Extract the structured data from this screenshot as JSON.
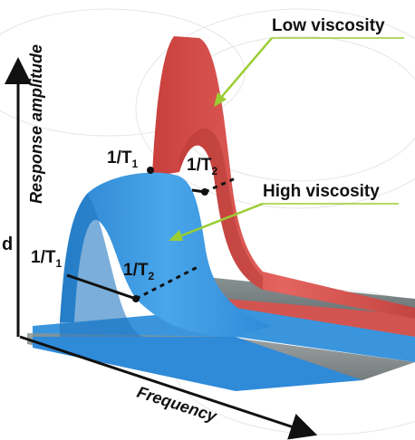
{
  "axes": {
    "y_label": "Response amplitude",
    "x_label": "Frequency"
  },
  "labels": {
    "low_viscosity": "Low viscosity",
    "high_viscosity": "High viscosity",
    "partial_left": "d"
  },
  "markers": {
    "high_t1": {
      "main": "1/T",
      "sub": "1"
    },
    "high_t2": {
      "main": "1/T",
      "sub": "2"
    },
    "low_t1": {
      "main": "1/T",
      "sub": "1"
    },
    "low_t2": {
      "main": "1/T",
      "sub": "2"
    }
  },
  "colors": {
    "low_viscosity_fill": "#d9534f",
    "high_viscosity_fill": "#2f8fd8",
    "callout_green": "#9acd32",
    "base_grey": "#6f7778"
  }
}
